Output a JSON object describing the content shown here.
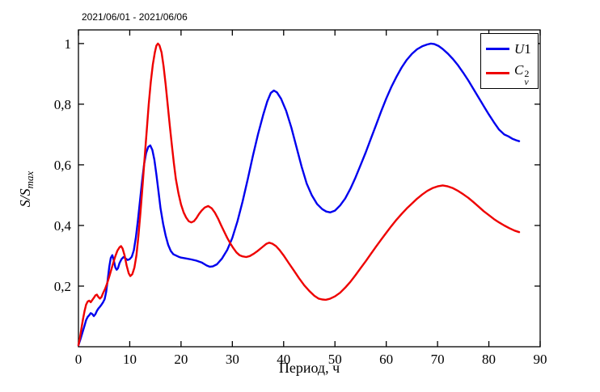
{
  "chart_data": {
    "type": "line",
    "title": "2021/06/01 - 2021/06/06",
    "xlabel": "Период, ч",
    "ylabel": "S/S_max",
    "ylabel_main": "S/S",
    "ylabel_sub": "max",
    "xlim": [
      0,
      90
    ],
    "ylim": [
      0,
      1.045
    ],
    "grid": false,
    "legend_position": "top-right",
    "box": true,
    "axis_color": "#000000",
    "xticks": [
      0,
      10,
      20,
      30,
      40,
      50,
      60,
      70,
      80,
      90
    ],
    "xtick_labels": [
      "0",
      "10",
      "20",
      "30",
      "40",
      "50",
      "60",
      "70",
      "80",
      "90"
    ],
    "yticks": [
      0.2,
      0.4,
      0.6,
      0.8,
      1
    ],
    "ytick_labels": [
      "0,2",
      "0,4",
      "0,6",
      "0,8",
      "1"
    ],
    "legend": [
      {
        "base": "U",
        "rest": "1",
        "color": "#0000ee"
      },
      {
        "base": "C",
        "sup": "2",
        "sub": "v",
        "color": "#ee0000"
      }
    ],
    "series": [
      {
        "name": "U1",
        "color": "#0000ee",
        "points": [
          [
            0,
            0.005
          ],
          [
            0.4,
            0.025
          ],
          [
            0.8,
            0.048
          ],
          [
            1.2,
            0.07
          ],
          [
            1.5,
            0.088
          ],
          [
            1.8,
            0.098
          ],
          [
            2.1,
            0.104
          ],
          [
            2.4,
            0.111
          ],
          [
            2.7,
            0.108
          ],
          [
            3,
            0.101
          ],
          [
            3.3,
            0.107
          ],
          [
            3.6,
            0.118
          ],
          [
            3.9,
            0.126
          ],
          [
            4.2,
            0.132
          ],
          [
            4.5,
            0.139
          ],
          [
            4.8,
            0.147
          ],
          [
            5.1,
            0.157
          ],
          [
            5.4,
            0.181
          ],
          [
            5.7,
            0.221
          ],
          [
            6,
            0.263
          ],
          [
            6.3,
            0.293
          ],
          [
            6.6,
            0.302
          ],
          [
            6.9,
            0.284
          ],
          [
            7.2,
            0.261
          ],
          [
            7.45,
            0.254
          ],
          [
            7.7,
            0.259
          ],
          [
            8,
            0.276
          ],
          [
            8.4,
            0.289
          ],
          [
            8.8,
            0.296
          ],
          [
            9.2,
            0.291
          ],
          [
            9.6,
            0.286
          ],
          [
            10,
            0.289
          ],
          [
            10.4,
            0.297
          ],
          [
            10.8,
            0.318
          ],
          [
            11.2,
            0.362
          ],
          [
            11.6,
            0.418
          ],
          [
            12,
            0.481
          ],
          [
            12.4,
            0.546
          ],
          [
            12.8,
            0.602
          ],
          [
            13.2,
            0.639
          ],
          [
            13.6,
            0.659
          ],
          [
            14,
            0.664
          ],
          [
            14.4,
            0.649
          ],
          [
            14.8,
            0.617
          ],
          [
            15.2,
            0.568
          ],
          [
            15.6,
            0.512
          ],
          [
            16,
            0.457
          ],
          [
            16.5,
            0.406
          ],
          [
            17,
            0.366
          ],
          [
            17.5,
            0.336
          ],
          [
            18,
            0.316
          ],
          [
            18.5,
            0.305
          ],
          [
            19,
            0.301
          ],
          [
            19.5,
            0.297
          ],
          [
            20,
            0.294
          ],
          [
            21,
            0.291
          ],
          [
            22,
            0.288
          ],
          [
            23,
            0.284
          ],
          [
            24,
            0.278
          ],
          [
            25,
            0.268
          ],
          [
            25.6,
            0.264
          ],
          [
            26.2,
            0.265
          ],
          [
            27,
            0.272
          ],
          [
            28,
            0.291
          ],
          [
            29,
            0.319
          ],
          [
            30,
            0.359
          ],
          [
            31,
            0.414
          ],
          [
            32,
            0.479
          ],
          [
            33,
            0.553
          ],
          [
            34,
            0.629
          ],
          [
            35,
            0.701
          ],
          [
            36,
            0.764
          ],
          [
            36.8,
            0.809
          ],
          [
            37.5,
            0.837
          ],
          [
            38.1,
            0.845
          ],
          [
            38.7,
            0.839
          ],
          [
            39.5,
            0.818
          ],
          [
            40.5,
            0.778
          ],
          [
            41.5,
            0.723
          ],
          [
            42.5,
            0.659
          ],
          [
            43.5,
            0.594
          ],
          [
            44.5,
            0.538
          ],
          [
            45.5,
            0.499
          ],
          [
            46.5,
            0.471
          ],
          [
            47.5,
            0.454
          ],
          [
            48.3,
            0.446
          ],
          [
            49.1,
            0.443
          ],
          [
            50,
            0.449
          ],
          [
            51,
            0.466
          ],
          [
            52,
            0.489
          ],
          [
            53,
            0.521
          ],
          [
            54,
            0.558
          ],
          [
            55,
            0.599
          ],
          [
            56,
            0.641
          ],
          [
            57,
            0.686
          ],
          [
            58,
            0.731
          ],
          [
            59,
            0.776
          ],
          [
            60,
            0.819
          ],
          [
            61,
            0.857
          ],
          [
            62,
            0.891
          ],
          [
            63,
            0.921
          ],
          [
            64,
            0.946
          ],
          [
            65,
            0.966
          ],
          [
            66,
            0.981
          ],
          [
            67,
            0.991
          ],
          [
            68,
            0.997
          ],
          [
            68.7,
            1.0
          ],
          [
            69.4,
            0.998
          ],
          [
            70.2,
            0.992
          ],
          [
            71,
            0.982
          ],
          [
            72,
            0.967
          ],
          [
            73,
            0.949
          ],
          [
            74,
            0.928
          ],
          [
            75,
            0.904
          ],
          [
            76,
            0.878
          ],
          [
            77,
            0.85
          ],
          [
            78,
            0.822
          ],
          [
            79,
            0.794
          ],
          [
            80,
            0.766
          ],
          [
            81,
            0.74
          ],
          [
            82,
            0.716
          ],
          [
            83,
            0.7
          ],
          [
            83.8,
            0.694
          ],
          [
            84.6,
            0.686
          ],
          [
            85.3,
            0.681
          ],
          [
            85.9,
            0.678
          ]
        ]
      },
      {
        "name": "Cv2",
        "color": "#ee0000",
        "points": [
          [
            0,
            0.005
          ],
          [
            0.3,
            0.03
          ],
          [
            0.6,
            0.062
          ],
          [
            0.9,
            0.092
          ],
          [
            1.2,
            0.118
          ],
          [
            1.5,
            0.139
          ],
          [
            1.8,
            0.149
          ],
          [
            2.1,
            0.152
          ],
          [
            2.4,
            0.147
          ],
          [
            2.7,
            0.154
          ],
          [
            3,
            0.161
          ],
          [
            3.3,
            0.169
          ],
          [
            3.6,
            0.172
          ],
          [
            3.9,
            0.164
          ],
          [
            4.2,
            0.159
          ],
          [
            4.5,
            0.164
          ],
          [
            4.8,
            0.177
          ],
          [
            5.2,
            0.191
          ],
          [
            5.6,
            0.209
          ],
          [
            6,
            0.231
          ],
          [
            6.4,
            0.254
          ],
          [
            6.8,
            0.277
          ],
          [
            7.2,
            0.299
          ],
          [
            7.6,
            0.317
          ],
          [
            8,
            0.328
          ],
          [
            8.3,
            0.332
          ],
          [
            8.6,
            0.324
          ],
          [
            9,
            0.301
          ],
          [
            9.4,
            0.268
          ],
          [
            9.8,
            0.242
          ],
          [
            10.1,
            0.233
          ],
          [
            10.5,
            0.239
          ],
          [
            10.9,
            0.261
          ],
          [
            11.3,
            0.301
          ],
          [
            11.7,
            0.366
          ],
          [
            12.1,
            0.446
          ],
          [
            12.5,
            0.531
          ],
          [
            12.9,
            0.621
          ],
          [
            13.3,
            0.711
          ],
          [
            13.7,
            0.799
          ],
          [
            14.1,
            0.874
          ],
          [
            14.5,
            0.931
          ],
          [
            14.9,
            0.971
          ],
          [
            15.2,
            0.993
          ],
          [
            15.5,
            1.0
          ],
          [
            15.8,
            0.994
          ],
          [
            16.2,
            0.971
          ],
          [
            16.6,
            0.925
          ],
          [
            17,
            0.864
          ],
          [
            17.4,
            0.798
          ],
          [
            17.8,
            0.731
          ],
          [
            18.2,
            0.666
          ],
          [
            18.6,
            0.606
          ],
          [
            19,
            0.553
          ],
          [
            19.5,
            0.506
          ],
          [
            20,
            0.469
          ],
          [
            20.5,
            0.443
          ],
          [
            21,
            0.426
          ],
          [
            21.5,
            0.414
          ],
          [
            22,
            0.41
          ],
          [
            22.5,
            0.414
          ],
          [
            23,
            0.424
          ],
          [
            23.5,
            0.438
          ],
          [
            24,
            0.449
          ],
          [
            24.6,
            0.459
          ],
          [
            25.3,
            0.464
          ],
          [
            26,
            0.456
          ],
          [
            26.6,
            0.442
          ],
          [
            27.2,
            0.423
          ],
          [
            27.8,
            0.401
          ],
          [
            28.4,
            0.38
          ],
          [
            29,
            0.359
          ],
          [
            29.6,
            0.341
          ],
          [
            30.2,
            0.325
          ],
          [
            30.8,
            0.311
          ],
          [
            31.4,
            0.302
          ],
          [
            32,
            0.298
          ],
          [
            32.7,
            0.296
          ],
          [
            33.4,
            0.299
          ],
          [
            34.2,
            0.307
          ],
          [
            35,
            0.317
          ],
          [
            35.8,
            0.328
          ],
          [
            36.6,
            0.339
          ],
          [
            37.2,
            0.343
          ],
          [
            37.8,
            0.34
          ],
          [
            38.5,
            0.332
          ],
          [
            39.2,
            0.319
          ],
          [
            40,
            0.301
          ],
          [
            41,
            0.276
          ],
          [
            42,
            0.251
          ],
          [
            43,
            0.226
          ],
          [
            44,
            0.203
          ],
          [
            45,
            0.184
          ],
          [
            46,
            0.168
          ],
          [
            46.8,
            0.159
          ],
          [
            47.5,
            0.156
          ],
          [
            48.2,
            0.155
          ],
          [
            49,
            0.158
          ],
          [
            50,
            0.166
          ],
          [
            51,
            0.178
          ],
          [
            52,
            0.195
          ],
          [
            53,
            0.214
          ],
          [
            54,
            0.236
          ],
          [
            55,
            0.259
          ],
          [
            56,
            0.282
          ],
          [
            57,
            0.306
          ],
          [
            58,
            0.33
          ],
          [
            59,
            0.353
          ],
          [
            60,
            0.376
          ],
          [
            61,
            0.398
          ],
          [
            62,
            0.419
          ],
          [
            63,
            0.438
          ],
          [
            64,
            0.456
          ],
          [
            65,
            0.472
          ],
          [
            66,
            0.488
          ],
          [
            67,
            0.502
          ],
          [
            68,
            0.514
          ],
          [
            69,
            0.523
          ],
          [
            70,
            0.529
          ],
          [
            71,
            0.532
          ],
          [
            72,
            0.529
          ],
          [
            73,
            0.523
          ],
          [
            74,
            0.514
          ],
          [
            75,
            0.503
          ],
          [
            76,
            0.491
          ],
          [
            77,
            0.477
          ],
          [
            78,
            0.462
          ],
          [
            79,
            0.447
          ],
          [
            80,
            0.434
          ],
          [
            81,
            0.421
          ],
          [
            82,
            0.41
          ],
          [
            83,
            0.4
          ],
          [
            84,
            0.391
          ],
          [
            85,
            0.383
          ],
          [
            85.9,
            0.378
          ]
        ]
      }
    ]
  }
}
